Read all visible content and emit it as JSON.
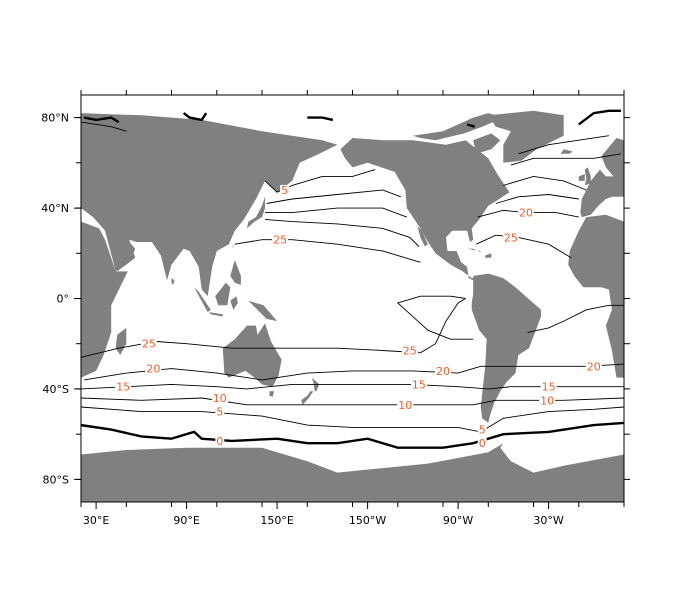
{
  "map": {
    "label_color": "#f0602a",
    "land_color": "#808080",
    "ocean_color": "#ffffff",
    "lat_ticks": [
      {
        "lat": 80,
        "label": "80°N"
      },
      {
        "lat": 40,
        "label": "40°N"
      },
      {
        "lat": 0,
        "label": "0°"
      },
      {
        "lat": -40,
        "label": "40°S"
      },
      {
        "lat": -80,
        "label": "80°S"
      }
    ],
    "lon_ticks": [
      {
        "lon": 30,
        "label": "30°E"
      },
      {
        "lon": 90,
        "label": "90°E"
      },
      {
        "lon": 150,
        "label": "150°E"
      },
      {
        "lon": 210,
        "label": "150°W"
      },
      {
        "lon": 270,
        "label": "90°W"
      },
      {
        "lon": 330,
        "label": "30°W"
      }
    ],
    "contour_labels": [
      {
        "text": "5",
        "lon": 155,
        "lat": 48
      },
      {
        "text": "25",
        "lon": 152,
        "lat": 26
      },
      {
        "text": "20",
        "lon": 315,
        "lat": 38
      },
      {
        "text": "25",
        "lon": 305,
        "lat": 27
      },
      {
        "text": "25",
        "lon": 65,
        "lat": -20
      },
      {
        "text": "20",
        "lon": 68,
        "lat": -31
      },
      {
        "text": "15",
        "lon": 48,
        "lat": -39
      },
      {
        "text": "10",
        "lon": 112,
        "lat": -44
      },
      {
        "text": "5",
        "lon": 112,
        "lat": -50
      },
      {
        "text": "0",
        "lon": 112,
        "lat": -63
      },
      {
        "text": "25",
        "lon": 238,
        "lat": -23
      },
      {
        "text": "20",
        "lon": 260,
        "lat": -32
      },
      {
        "text": "15",
        "lon": 244,
        "lat": -38
      },
      {
        "text": "10",
        "lon": 235,
        "lat": -47
      },
      {
        "text": "5",
        "lon": 286,
        "lat": -58
      },
      {
        "text": "0",
        "lon": 286,
        "lat": -64
      },
      {
        "text": "15",
        "lon": 330,
        "lat": -39
      },
      {
        "text": "10",
        "lon": 329,
        "lat": -45
      },
      {
        "text": "20",
        "lon": 360,
        "lat": -30
      }
    ]
  }
}
